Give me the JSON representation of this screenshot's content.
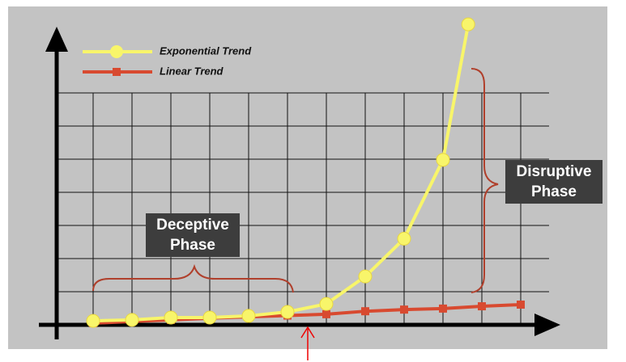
{
  "chart_data": {
    "type": "line",
    "xlim": [
      0,
      13
    ],
    "ylim": [
      0,
      9.5
    ],
    "xticks": [
      1,
      2,
      3,
      4,
      5,
      6,
      7,
      8,
      9,
      10,
      11,
      12
    ],
    "yticks": [
      1,
      2,
      3,
      4,
      5,
      6,
      7
    ],
    "grid": true,
    "series": [
      {
        "name": "Linear Trend",
        "color": "#d84a30",
        "marker": "square",
        "x": [
          1,
          2,
          3,
          4,
          5,
          6,
          7,
          8,
          9,
          10,
          11,
          12
        ],
        "values": [
          0.05,
          0.1,
          0.15,
          0.2,
          0.24,
          0.28,
          0.32,
          0.41,
          0.46,
          0.49,
          0.56,
          0.61
        ]
      },
      {
        "name": "Exponential Trend",
        "color": "#f8f56a",
        "marker": "circle",
        "x": [
          1,
          2,
          3,
          4,
          5,
          6,
          7,
          8,
          9,
          10,
          10.65
        ],
        "values": [
          0.12,
          0.15,
          0.22,
          0.22,
          0.27,
          0.39,
          0.63,
          1.46,
          2.6,
          4.98,
          9.07
        ]
      }
    ],
    "annotations": [
      "Deceptive Phase",
      "Disruptive Phase"
    ]
  }
}
